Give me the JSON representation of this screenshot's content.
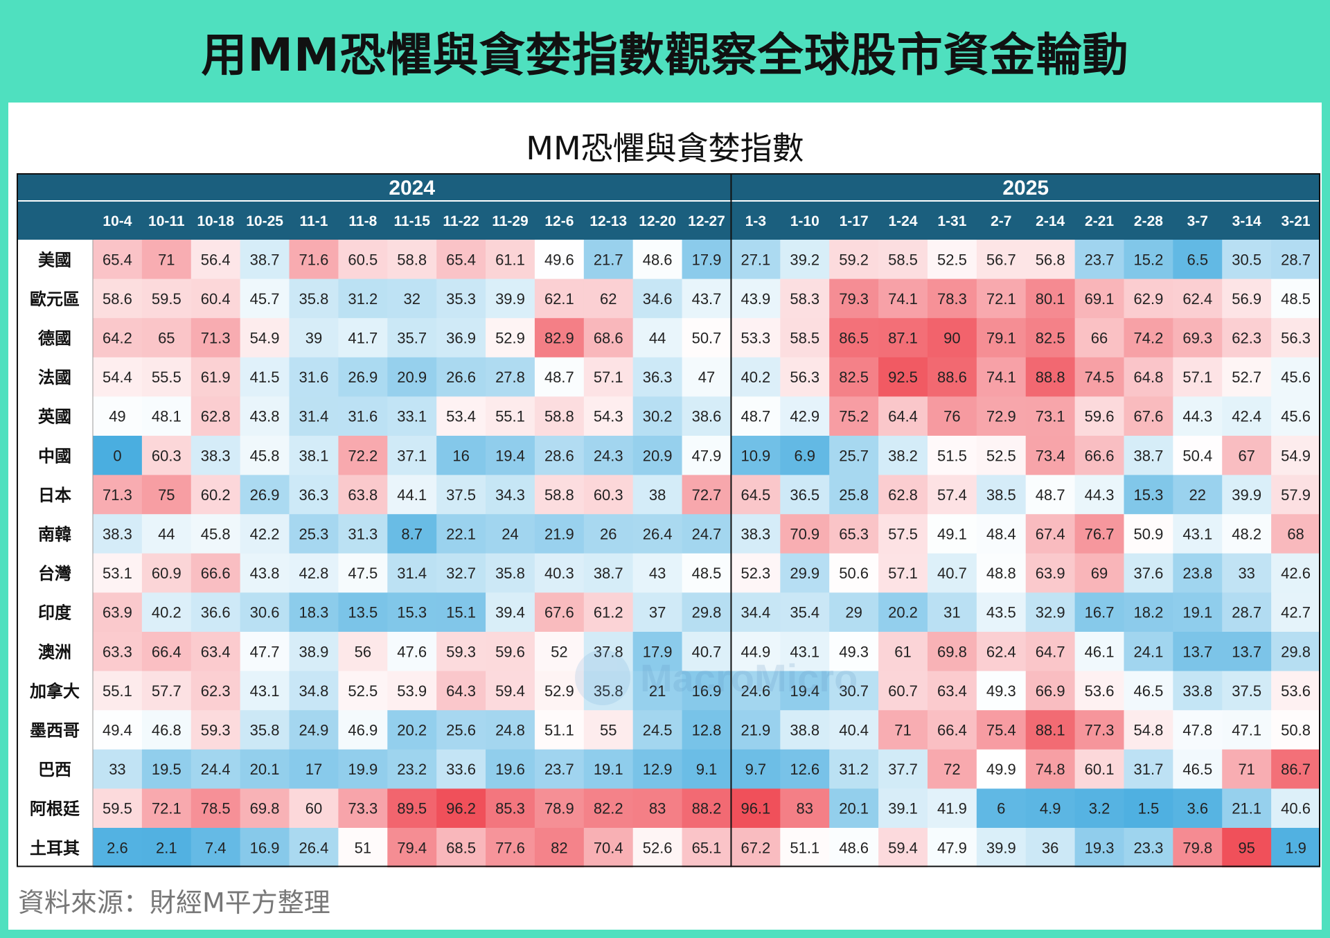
{
  "header": {
    "title": "用MM恐懼與貪婪指數觀察全球股市資金輪動"
  },
  "footer": {
    "source": "資料來源：財經M平方整理"
  },
  "watermark": {
    "text": "MacroMicro"
  },
  "colors": {
    "banner": "#4fe0bf",
    "header": "#1b5f7e",
    "low": "#4aaee0",
    "high": "#f0505a"
  },
  "chart_data": {
    "type": "heatmap",
    "title": "MM恐懼與貪婪指數",
    "years": [
      {
        "label": "2024",
        "span": 13
      },
      {
        "label": "2025",
        "span": 12
      }
    ],
    "columns": [
      "10-4",
      "10-11",
      "10-18",
      "10-25",
      "11-1",
      "11-8",
      "11-15",
      "11-22",
      "11-29",
      "12-6",
      "12-13",
      "12-20",
      "12-27",
      "1-3",
      "1-10",
      "1-17",
      "1-24",
      "1-31",
      "2-7",
      "2-14",
      "2-21",
      "2-28",
      "3-7",
      "3-14",
      "3-21"
    ],
    "rows": [
      {
        "name": "美國",
        "values": [
          65.4,
          71,
          56.4,
          38.7,
          71.6,
          60.5,
          58.8,
          65.4,
          61.1,
          49.6,
          21.7,
          48.6,
          17.9,
          27.1,
          39.2,
          59.2,
          58.5,
          52.5,
          56.7,
          56.8,
          23.7,
          15.2,
          6.5,
          30.5,
          28.7
        ]
      },
      {
        "name": "歐元區",
        "values": [
          58.6,
          59.5,
          60.4,
          45.7,
          35.8,
          31.2,
          32,
          35.3,
          39.9,
          62.1,
          62,
          34.6,
          43.7,
          43.9,
          58.3,
          79.3,
          74.1,
          78.3,
          72.1,
          80.1,
          69.1,
          62.9,
          62.4,
          56.9,
          48.5
        ]
      },
      {
        "name": "德國",
        "values": [
          64.2,
          65,
          71.3,
          54.9,
          39,
          41.7,
          35.7,
          36.9,
          52.9,
          82.9,
          68.6,
          44,
          50.7,
          53.3,
          58.5,
          86.5,
          87.1,
          90,
          79.1,
          82.5,
          66,
          74.2,
          69.3,
          62.3,
          56.3
        ]
      },
      {
        "name": "法國",
        "values": [
          54.4,
          55.5,
          61.9,
          41.5,
          31.6,
          26.9,
          20.9,
          26.6,
          27.8,
          48.7,
          57.1,
          36.3,
          47,
          40.2,
          56.3,
          82.5,
          92.5,
          88.6,
          74.1,
          88.8,
          74.5,
          64.8,
          57.1,
          52.7,
          45.6
        ]
      },
      {
        "name": "英國",
        "values": [
          49,
          48.1,
          62.8,
          43.8,
          31.4,
          31.6,
          33.1,
          53.4,
          55.1,
          58.8,
          54.3,
          30.2,
          38.6,
          48.7,
          42.9,
          75.2,
          64.4,
          76,
          72.9,
          73.1,
          59.6,
          67.6,
          44.3,
          42.4,
          45.6
        ]
      },
      {
        "name": "中國",
        "values": [
          0,
          60.3,
          38.3,
          45.8,
          38.1,
          72.2,
          37.1,
          16,
          19.4,
          28.6,
          24.3,
          20.9,
          47.9,
          10.9,
          6.9,
          25.7,
          38.2,
          51.5,
          52.5,
          73.4,
          66.6,
          38.7,
          50.4,
          67,
          54.9
        ]
      },
      {
        "name": "日本",
        "values": [
          71.3,
          75,
          60.2,
          26.9,
          36.3,
          63.8,
          44.1,
          37.5,
          34.3,
          58.8,
          60.3,
          38,
          72.7,
          64.5,
          36.5,
          25.8,
          62.8,
          57.4,
          38.5,
          48.7,
          44.3,
          15.3,
          22,
          39.9,
          57.9
        ]
      },
      {
        "name": "南韓",
        "values": [
          38.3,
          44,
          45.8,
          42.2,
          25.3,
          31.3,
          8.7,
          22.1,
          24,
          21.9,
          26,
          26.4,
          24.7,
          38.3,
          70.9,
          65.3,
          57.5,
          49.1,
          48.4,
          67.4,
          76.7,
          50.9,
          43.1,
          48.2,
          68
        ]
      },
      {
        "name": "台灣",
        "values": [
          53.1,
          60.9,
          66.6,
          43.8,
          42.8,
          47.5,
          31.4,
          32.7,
          35.8,
          40.3,
          38.7,
          43,
          48.5,
          52.3,
          29.9,
          50.6,
          57.1,
          40.7,
          48.8,
          63.9,
          69,
          37.6,
          23.8,
          33,
          42.6
        ]
      },
      {
        "name": "印度",
        "values": [
          63.9,
          40.2,
          36.6,
          30.6,
          18.3,
          13.5,
          15.3,
          15.1,
          39.4,
          67.6,
          61.2,
          37,
          29.8,
          34.4,
          35.4,
          29,
          20.2,
          31,
          43.5,
          32.9,
          16.7,
          18.2,
          19.1,
          28.7,
          42.7
        ]
      },
      {
        "name": "澳洲",
        "values": [
          63.3,
          66.4,
          63.4,
          47.7,
          38.9,
          56,
          47.6,
          59.3,
          59.6,
          52,
          37.8,
          17.9,
          40.7,
          44.9,
          43.1,
          49.3,
          61,
          69.8,
          62.4,
          64.7,
          46.1,
          24.1,
          13.7,
          13.7,
          29.8
        ]
      },
      {
        "name": "加拿大",
        "values": [
          55.1,
          57.7,
          62.3,
          43.1,
          34.8,
          52.5,
          53.9,
          64.3,
          59.4,
          52.9,
          35.8,
          21,
          16.9,
          24.6,
          19.4,
          30.7,
          60.7,
          63.4,
          49.3,
          66.9,
          53.6,
          46.5,
          33.8,
          37.5,
          53.6
        ]
      },
      {
        "name": "墨西哥",
        "values": [
          49.4,
          46.8,
          59.3,
          35.8,
          24.9,
          46.9,
          20.2,
          25.6,
          24.8,
          51.1,
          55,
          24.5,
          12.8,
          21.9,
          38.8,
          40.4,
          71,
          66.4,
          75.4,
          88.1,
          77.3,
          54.8,
          47.8,
          47.1,
          50.8
        ]
      },
      {
        "name": "巴西",
        "values": [
          33,
          19.5,
          24.4,
          20.1,
          17,
          19.9,
          23.2,
          33.6,
          19.6,
          23.7,
          19.1,
          12.9,
          9.1,
          9.7,
          12.6,
          31.2,
          37.7,
          72,
          49.9,
          74.8,
          60.1,
          31.7,
          46.5,
          71,
          86.7
        ]
      },
      {
        "name": "阿根廷",
        "values": [
          59.5,
          72.1,
          78.5,
          69.8,
          60,
          73.3,
          89.5,
          96.2,
          85.3,
          78.9,
          82.2,
          83,
          88.2,
          96.1,
          83,
          20.1,
          39.1,
          41.9,
          6,
          4.9,
          3.2,
          1.5,
          3.6,
          21.1,
          40.6
        ]
      },
      {
        "name": "土耳其",
        "values": [
          2.6,
          2.1,
          7.4,
          16.9,
          26.4,
          51,
          79.4,
          68.5,
          77.6,
          82,
          70.4,
          52.6,
          65.1,
          67.2,
          51.1,
          48.6,
          59.4,
          47.9,
          39.9,
          36,
          19.3,
          23.3,
          79.8,
          95,
          1.9
        ]
      }
    ]
  }
}
